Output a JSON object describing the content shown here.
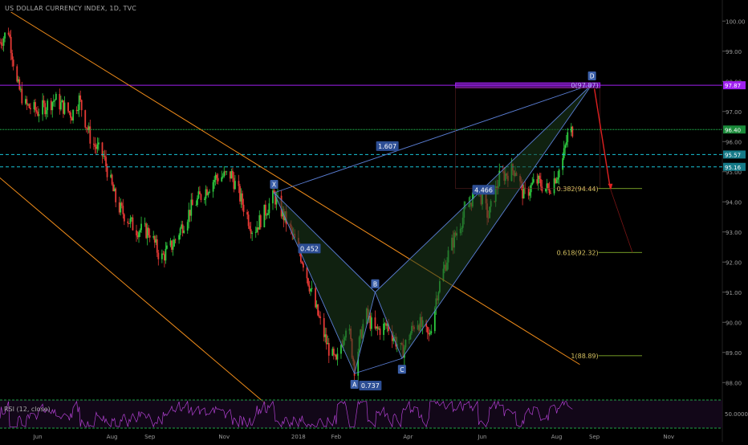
{
  "header": {
    "title": "US DOLLAR CURRENCY INDEX, 1D, TVC"
  },
  "rsi": {
    "label": "RSI (12, close)",
    "axis_label": "50.0000"
  },
  "colors": {
    "background": "#000000",
    "up": "#2ecc40",
    "down": "#e53935",
    "channel": "#f08c1a",
    "pattern": "#5b7fd6",
    "pattern_fill": "#1d3d1d",
    "resistance": "#a020f0",
    "support_dashed": "#18c4d8",
    "green_level": "#27d35a",
    "target_arrow": "#e02020",
    "rsi_line": "#b040d0",
    "axis_text": "#9a9a9a"
  },
  "chart_data": {
    "type": "candlestick",
    "title": "US DOLLAR CURRENCY INDEX, 1D, TVC",
    "x_axis": {
      "ticks": [
        "Jun",
        "Aug",
        "Sep",
        "Nov",
        "2018",
        "Feb",
        "Apr",
        "Jun",
        "Aug",
        "Sep",
        "Nov"
      ],
      "tick_dates": [
        "2017-06-01",
        "2017-08-01",
        "2017-09-01",
        "2017-11-01",
        "2018-01-01",
        "2018-02-01",
        "2018-04-01",
        "2018-06-01",
        "2018-08-01",
        "2018-09-01",
        "2018-11-01"
      ],
      "range": [
        "2017-05-01",
        "2018-12-15"
      ]
    },
    "y_axis": {
      "range": [
        87.5,
        100.3
      ],
      "ticks": [
        88.0,
        89.0,
        90.0,
        91.0,
        92.0,
        93.0,
        94.0,
        95.0,
        96.0,
        97.0,
        98.0,
        99.0,
        100.0
      ],
      "tick_labels": [
        "88.00",
        "89.00",
        "90.00",
        "91.00",
        "92.00",
        "93.00",
        "94.00",
        "95.00",
        "96.00",
        "97.00",
        "98.00",
        "99.00",
        "100.00"
      ]
    },
    "price_path": [
      [
        "2017-05-01",
        99.3
      ],
      [
        "2017-05-08",
        99.7
      ],
      [
        "2017-05-15",
        97.9
      ],
      [
        "2017-05-22",
        97.2
      ],
      [
        "2017-06-01",
        97.0
      ],
      [
        "2017-06-15",
        97.4
      ],
      [
        "2017-06-29",
        96.9
      ],
      [
        "2017-07-05",
        97.4
      ],
      [
        "2017-07-15",
        96.0
      ],
      [
        "2017-07-25",
        95.5
      ],
      [
        "2017-08-05",
        93.9
      ],
      [
        "2017-08-20",
        93.1
      ],
      [
        "2017-09-01",
        93.0
      ],
      [
        "2017-09-10",
        92.1
      ],
      [
        "2017-09-20",
        92.6
      ],
      [
        "2017-10-05",
        93.8
      ],
      [
        "2017-10-25",
        94.8
      ],
      [
        "2017-11-07",
        94.9
      ],
      [
        "2017-11-25",
        93.0
      ],
      [
        "2017-12-05",
        93.7
      ],
      [
        "2017-12-12",
        94.2
      ],
      [
        "2017-12-25",
        93.1
      ],
      [
        "2018-01-05",
        92.0
      ],
      [
        "2018-01-15",
        90.5
      ],
      [
        "2018-01-25",
        89.2
      ],
      [
        "2018-02-01",
        88.6
      ],
      [
        "2018-02-10",
        90.1
      ],
      [
        "2018-02-16",
        88.5
      ],
      [
        "2018-02-25",
        90.3
      ],
      [
        "2018-03-05",
        89.7
      ],
      [
        "2018-03-15",
        89.9
      ],
      [
        "2018-03-27",
        89.0
      ],
      [
        "2018-04-08",
        90.1
      ],
      [
        "2018-04-18",
        89.5
      ],
      [
        "2018-04-25",
        91.0
      ],
      [
        "2018-05-05",
        92.4
      ],
      [
        "2018-05-15",
        93.4
      ],
      [
        "2018-05-28",
        94.5
      ],
      [
        "2018-06-06",
        93.5
      ],
      [
        "2018-06-15",
        94.8
      ],
      [
        "2018-06-28",
        95.1
      ],
      [
        "2018-07-05",
        94.2
      ],
      [
        "2018-07-15",
        94.7
      ],
      [
        "2018-07-25",
        94.4
      ],
      [
        "2018-08-05",
        95.2
      ],
      [
        "2018-08-10",
        96.2
      ],
      [
        "2018-08-14",
        96.4
      ]
    ],
    "levels": [
      {
        "name": "resistance",
        "value": 97.87,
        "label": "97.87"
      },
      {
        "name": "green",
        "value": 96.4,
        "label": "96.40"
      },
      {
        "name": "dashed-upper",
        "value": 95.57,
        "label": "95.57"
      },
      {
        "name": "dashed-lower",
        "value": 95.16,
        "label": "95.16"
      }
    ],
    "fib_targets": [
      {
        "label": "0(97.87)",
        "value": 97.87
      },
      {
        "label": "0.382(94.44)",
        "value": 94.44
      },
      {
        "label": "0.618(92.32)",
        "value": 92.32
      },
      {
        "label": "1(88.89)",
        "value": 88.89
      }
    ],
    "harmonic_pattern": {
      "points": [
        {
          "label": "X",
          "date": "2017-12-12",
          "value": 94.3
        },
        {
          "label": "A",
          "date": "2018-02-16",
          "value": 88.3
        },
        {
          "label": "B",
          "date": "2018-03-05",
          "value": 91.0
        },
        {
          "label": "C",
          "date": "2018-03-27",
          "value": 88.8
        },
        {
          "label": "D",
          "date": "2018-08-30",
          "value": 97.9
        }
      ],
      "ratios": [
        {
          "label": "0.452",
          "date": "2018-01-10",
          "value": 92.45
        },
        {
          "label": "0.737",
          "date": "2018-03-01",
          "value": 87.9
        },
        {
          "label": "1.607",
          "date": "2018-03-15",
          "value": 95.85
        },
        {
          "label": "4.466",
          "date": "2018-06-02",
          "value": 94.4
        }
      ]
    },
    "channel": {
      "upper": [
        [
          "2017-05-10",
          100.3
        ],
        [
          "2018-08-20",
          88.6
        ]
      ],
      "lower": [
        [
          "2017-04-25",
          95.0
        ],
        [
          "2017-12-05",
          87.3
        ]
      ]
    },
    "target_arrow": {
      "from": [
        "2018-09-01",
        97.75
      ],
      "points_to": [
        "2018-09-14",
        94.44
      ]
    },
    "rsi": {
      "name": "RSI (12, close)",
      "levels": [
        70,
        30
      ],
      "range_label": "50.0000"
    }
  }
}
